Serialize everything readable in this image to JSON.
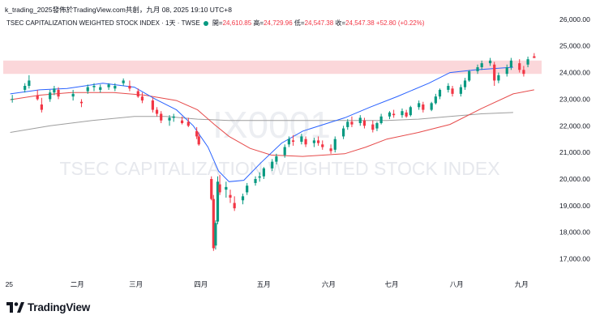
{
  "header": {
    "author": "k_trading_2025",
    "published_on": "發佈於TradingView.com",
    "published_date": "共創，九月 08, 2025 19:10 UTC+8"
  },
  "symbol_bar": {
    "name": "TSEC CAPITALIZATION WEIGHTED STOCK INDEX · 1天 · TWSE",
    "open_label": "開=",
    "open": "24,610.85",
    "high_label": "高=",
    "high": "24,729.96",
    "low_label": "低=",
    "low": "24,547.38",
    "close_label": "收=",
    "close": "24,547.38",
    "change": "+52.80 (+0.22%)"
  },
  "watermark": {
    "ticker": "IX0001",
    "description": "TSEC CAPITALIZATION WEIGHTED STOCK INDEX"
  },
  "brand": {
    "name": "TradingView"
  },
  "chart_data": {
    "type": "candlestick",
    "ylim": [
      16500,
      26300
    ],
    "y_ticks": [
      "26,000.00",
      "25,000.00",
      "24,000.00",
      "23,000.00",
      "22,000.00",
      "21,000.00",
      "20,000.00",
      "19,000.00",
      "18,000.00",
      "17,000.00"
    ],
    "y_tick_values": [
      26000,
      25000,
      24000,
      23000,
      22000,
      21000,
      20000,
      19000,
      18000,
      17000
    ],
    "x_ticks": [
      "25",
      "二月",
      "三月",
      "四月",
      "五月",
      "六月",
      "七月",
      "八月",
      "九月"
    ],
    "x_tick_dates": [
      "2025-01-01",
      "2025-02-01",
      "2025-03-01",
      "2025-04-01",
      "2025-05-01",
      "2025-06-01",
      "2025-07-01",
      "2025-08-01",
      "2025-09-01"
    ],
    "resistance_zone": [
      23950,
      24450
    ],
    "colors": {
      "up": "#089981",
      "down": "#f23645",
      "zone": "#fbd5d8",
      "ma_short": "#6f8fe8",
      "ma_mid": "#2962ff",
      "ma_long": "#e64a4a",
      "ma_longest": "#9e9e9e",
      "grid_label": "#131722"
    },
    "candles": [
      {
        "date": "2025-01-02",
        "o": 23000,
        "h": 23160,
        "l": 22870,
        "c": 23010
      },
      {
        "date": "2025-01-08",
        "o": 23350,
        "h": 23600,
        "l": 23250,
        "c": 23500
      },
      {
        "date": "2025-01-10",
        "o": 23500,
        "h": 23900,
        "l": 23400,
        "c": 23700
      },
      {
        "date": "2025-01-14",
        "o": 23150,
        "h": 23350,
        "l": 22950,
        "c": 23000
      },
      {
        "date": "2025-01-16",
        "o": 22800,
        "h": 23050,
        "l": 22500,
        "c": 22600
      },
      {
        "date": "2025-01-20",
        "o": 23000,
        "h": 23350,
        "l": 22900,
        "c": 23250
      },
      {
        "date": "2025-01-22",
        "o": 23250,
        "h": 23500,
        "l": 23150,
        "c": 23400
      },
      {
        "date": "2025-01-24",
        "o": 23350,
        "h": 23450,
        "l": 23000,
        "c": 23100
      },
      {
        "date": "2025-01-31",
        "o": 23100,
        "h": 23350,
        "l": 22950,
        "c": 23200
      },
      {
        "date": "2025-02-04",
        "o": 22900,
        "h": 23000,
        "l": 22700,
        "c": 22850
      },
      {
        "date": "2025-02-07",
        "o": 23300,
        "h": 23550,
        "l": 23200,
        "c": 23450
      },
      {
        "date": "2025-02-10",
        "o": 23450,
        "h": 23600,
        "l": 23300,
        "c": 23500
      },
      {
        "date": "2025-02-13",
        "o": 23350,
        "h": 23550,
        "l": 23250,
        "c": 23450
      },
      {
        "date": "2025-02-17",
        "o": 23450,
        "h": 23600,
        "l": 23350,
        "c": 23550
      },
      {
        "date": "2025-02-20",
        "o": 23400,
        "h": 23600,
        "l": 23300,
        "c": 23500
      },
      {
        "date": "2025-02-24",
        "o": 23600,
        "h": 23780,
        "l": 23500,
        "c": 23700
      },
      {
        "date": "2025-02-27",
        "o": 23500,
        "h": 23700,
        "l": 23300,
        "c": 23400
      },
      {
        "date": "2025-03-03",
        "o": 23300,
        "h": 23400,
        "l": 23050,
        "c": 23100
      },
      {
        "date": "2025-03-05",
        "o": 23100,
        "h": 23250,
        "l": 22850,
        "c": 22950
      },
      {
        "date": "2025-03-10",
        "o": 22950,
        "h": 23050,
        "l": 22500,
        "c": 22600
      },
      {
        "date": "2025-03-12",
        "o": 22600,
        "h": 22700,
        "l": 22350,
        "c": 22450
      },
      {
        "date": "2025-03-14",
        "o": 22450,
        "h": 22550,
        "l": 22100,
        "c": 22200
      },
      {
        "date": "2025-03-18",
        "o": 22200,
        "h": 22400,
        "l": 22000,
        "c": 22300
      },
      {
        "date": "2025-03-20",
        "o": 22300,
        "h": 22450,
        "l": 22150,
        "c": 22350
      },
      {
        "date": "2025-03-24",
        "o": 22200,
        "h": 22350,
        "l": 22050,
        "c": 22100
      },
      {
        "date": "2025-03-27",
        "o": 22150,
        "h": 22300,
        "l": 21950,
        "c": 22000
      },
      {
        "date": "2025-03-31",
        "o": 21800,
        "h": 21950,
        "l": 21500,
        "c": 21600
      },
      {
        "date": "2025-04-01",
        "o": 21600,
        "h": 21750,
        "l": 21250,
        "c": 21300
      },
      {
        "date": "2025-04-07",
        "o": 20000,
        "h": 20100,
        "l": 19200,
        "c": 19250
      },
      {
        "date": "2025-04-08",
        "o": 19250,
        "h": 19400,
        "l": 17300,
        "c": 17400
      },
      {
        "date": "2025-04-09",
        "o": 17500,
        "h": 18450,
        "l": 17350,
        "c": 18350
      },
      {
        "date": "2025-04-10",
        "o": 18400,
        "h": 20100,
        "l": 18300,
        "c": 19900
      },
      {
        "date": "2025-04-11",
        "o": 19800,
        "h": 20150,
        "l": 19400,
        "c": 19500
      },
      {
        "date": "2025-04-14",
        "o": 19600,
        "h": 19900,
        "l": 19300,
        "c": 19700
      },
      {
        "date": "2025-04-16",
        "o": 19400,
        "h": 19600,
        "l": 19100,
        "c": 19300
      },
      {
        "date": "2025-04-18",
        "o": 19100,
        "h": 19350,
        "l": 18800,
        "c": 18900
      },
      {
        "date": "2025-04-22",
        "o": 19200,
        "h": 19450,
        "l": 19050,
        "c": 19350
      },
      {
        "date": "2025-04-24",
        "o": 19500,
        "h": 19850,
        "l": 19400,
        "c": 19750
      },
      {
        "date": "2025-04-28",
        "o": 19850,
        "h": 20100,
        "l": 19750,
        "c": 20000
      },
      {
        "date": "2025-04-30",
        "o": 20050,
        "h": 20250,
        "l": 19900,
        "c": 20100
      },
      {
        "date": "2025-05-02",
        "o": 20100,
        "h": 20450,
        "l": 20000,
        "c": 20400
      },
      {
        "date": "2025-05-06",
        "o": 20400,
        "h": 20750,
        "l": 20300,
        "c": 20650
      },
      {
        "date": "2025-05-08",
        "o": 20650,
        "h": 20950,
        "l": 20550,
        "c": 20850
      },
      {
        "date": "2025-05-12",
        "o": 20900,
        "h": 21300,
        "l": 20800,
        "c": 21200
      },
      {
        "date": "2025-05-14",
        "o": 21300,
        "h": 21600,
        "l": 21200,
        "c": 21500
      },
      {
        "date": "2025-05-16",
        "o": 21450,
        "h": 21650,
        "l": 21250,
        "c": 21400
      },
      {
        "date": "2025-05-20",
        "o": 21400,
        "h": 21700,
        "l": 21300,
        "c": 21600
      },
      {
        "date": "2025-05-22",
        "o": 21500,
        "h": 21600,
        "l": 21200,
        "c": 21300
      },
      {
        "date": "2025-05-26",
        "o": 21350,
        "h": 21550,
        "l": 21200,
        "c": 21450
      },
      {
        "date": "2025-05-28",
        "o": 21450,
        "h": 21600,
        "l": 21250,
        "c": 21350
      },
      {
        "date": "2025-05-30",
        "o": 21300,
        "h": 21450,
        "l": 21100,
        "c": 21200
      },
      {
        "date": "2025-06-03",
        "o": 21150,
        "h": 21300,
        "l": 20950,
        "c": 21050
      },
      {
        "date": "2025-06-05",
        "o": 21100,
        "h": 21600,
        "l": 21000,
        "c": 21500
      },
      {
        "date": "2025-06-09",
        "o": 21600,
        "h": 22000,
        "l": 21500,
        "c": 21900
      },
      {
        "date": "2025-06-11",
        "o": 21950,
        "h": 22250,
        "l": 21850,
        "c": 22150
      },
      {
        "date": "2025-06-13",
        "o": 22150,
        "h": 22350,
        "l": 21950,
        "c": 22050
      },
      {
        "date": "2025-06-17",
        "o": 22100,
        "h": 22400,
        "l": 22000,
        "c": 22300
      },
      {
        "date": "2025-06-19",
        "o": 22200,
        "h": 22300,
        "l": 21900,
        "c": 22000
      },
      {
        "date": "2025-06-23",
        "o": 22050,
        "h": 22200,
        "l": 21750,
        "c": 21850
      },
      {
        "date": "2025-06-25",
        "o": 21900,
        "h": 22150,
        "l": 21800,
        "c": 22100
      },
      {
        "date": "2025-06-27",
        "o": 22100,
        "h": 22450,
        "l": 22050,
        "c": 22350
      },
      {
        "date": "2025-07-01",
        "o": 22350,
        "h": 22550,
        "l": 22250,
        "c": 22500
      },
      {
        "date": "2025-07-03",
        "o": 22450,
        "h": 22600,
        "l": 22300,
        "c": 22400
      },
      {
        "date": "2025-07-07",
        "o": 22400,
        "h": 22650,
        "l": 22300,
        "c": 22550
      },
      {
        "date": "2025-07-09",
        "o": 22500,
        "h": 22600,
        "l": 22300,
        "c": 22350
      },
      {
        "date": "2025-07-11",
        "o": 22400,
        "h": 22750,
        "l": 22350,
        "c": 22700
      },
      {
        "date": "2025-07-15",
        "o": 22700,
        "h": 22950,
        "l": 22600,
        "c": 22850
      },
      {
        "date": "2025-07-17",
        "o": 22800,
        "h": 22900,
        "l": 22500,
        "c": 22600
      },
      {
        "date": "2025-07-21",
        "o": 22600,
        "h": 22900,
        "l": 22550,
        "c": 22850
      },
      {
        "date": "2025-07-23",
        "o": 22850,
        "h": 23200,
        "l": 22800,
        "c": 23100
      },
      {
        "date": "2025-07-25",
        "o": 23100,
        "h": 23400,
        "l": 23000,
        "c": 23350
      },
      {
        "date": "2025-07-29",
        "o": 23350,
        "h": 23600,
        "l": 23250,
        "c": 23500
      },
      {
        "date": "2025-07-31",
        "o": 23400,
        "h": 23500,
        "l": 23100,
        "c": 23200
      },
      {
        "date": "2025-08-04",
        "o": 23200,
        "h": 23550,
        "l": 23100,
        "c": 23450
      },
      {
        "date": "2025-08-06",
        "o": 23450,
        "h": 23800,
        "l": 23350,
        "c": 23700
      },
      {
        "date": "2025-08-08",
        "o": 23700,
        "h": 24100,
        "l": 23650,
        "c": 24050
      },
      {
        "date": "2025-08-12",
        "o": 24050,
        "h": 24300,
        "l": 23950,
        "c": 24200
      },
      {
        "date": "2025-08-14",
        "o": 24200,
        "h": 24450,
        "l": 24100,
        "c": 24350
      },
      {
        "date": "2025-08-18",
        "o": 24350,
        "h": 24550,
        "l": 24250,
        "c": 24450
      },
      {
        "date": "2025-08-20",
        "o": 24300,
        "h": 24400,
        "l": 23500,
        "c": 23700
      },
      {
        "date": "2025-08-22",
        "o": 23700,
        "h": 24000,
        "l": 23600,
        "c": 23900
      },
      {
        "date": "2025-08-26",
        "o": 23950,
        "h": 24300,
        "l": 23850,
        "c": 24200
      },
      {
        "date": "2025-08-28",
        "o": 24200,
        "h": 24550,
        "l": 24100,
        "c": 24450
      },
      {
        "date": "2025-09-01",
        "o": 24350,
        "h": 24500,
        "l": 24000,
        "c": 24100
      },
      {
        "date": "2025-09-03",
        "o": 24100,
        "h": 24250,
        "l": 23850,
        "c": 23950
      },
      {
        "date": "2025-09-05",
        "o": 24300,
        "h": 24600,
        "l": 24200,
        "c": 24500
      },
      {
        "date": "2025-09-08",
        "o": 24611,
        "h": 24730,
        "l": 24547,
        "c": 24547
      }
    ],
    "ma_short": [
      [
        1,
        23200
      ],
      [
        15,
        23350
      ],
      [
        28,
        23400
      ],
      [
        45,
        23600
      ],
      [
        60,
        23450
      ],
      [
        70,
        23000
      ],
      [
        80,
        22600
      ],
      [
        88,
        22000
      ],
      [
        95,
        21200
      ],
      [
        100,
        20300
      ],
      [
        105,
        19900
      ],
      [
        112,
        19950
      ],
      [
        120,
        20600
      ],
      [
        130,
        21350
      ],
      [
        140,
        21800
      ],
      [
        150,
        22050
      ],
      [
        160,
        22300
      ],
      [
        172,
        22700
      ],
      [
        185,
        23100
      ],
      [
        200,
        23600
      ],
      [
        210,
        24000
      ],
      [
        222,
        24100
      ],
      [
        240,
        24200
      ]
    ],
    "ma_mid": [
      [
        1,
        22980
      ],
      [
        15,
        23150
      ],
      [
        30,
        23250
      ],
      [
        50,
        23250
      ],
      [
        65,
        23150
      ],
      [
        80,
        22950
      ],
      [
        90,
        22600
      ],
      [
        98,
        22050
      ],
      [
        105,
        21600
      ],
      [
        115,
        21150
      ],
      [
        125,
        20900
      ],
      [
        140,
        20850
      ],
      [
        160,
        20950
      ],
      [
        170,
        21200
      ],
      [
        180,
        21500
      ],
      [
        195,
        21750
      ],
      [
        210,
        22050
      ],
      [
        225,
        22650
      ],
      [
        240,
        23200
      ],
      [
        250,
        23350
      ]
    ],
    "ma_long": [
      [
        1,
        21750
      ],
      [
        20,
        22000
      ],
      [
        40,
        22200
      ],
      [
        60,
        22350
      ],
      [
        75,
        22350
      ],
      [
        90,
        22250
      ],
      [
        105,
        22200
      ],
      [
        120,
        22200
      ],
      [
        135,
        22200
      ],
      [
        150,
        22200
      ],
      [
        165,
        22200
      ],
      [
        180,
        22200
      ],
      [
        195,
        22250
      ],
      [
        210,
        22350
      ],
      [
        225,
        22450
      ],
      [
        240,
        22500
      ]
    ]
  }
}
